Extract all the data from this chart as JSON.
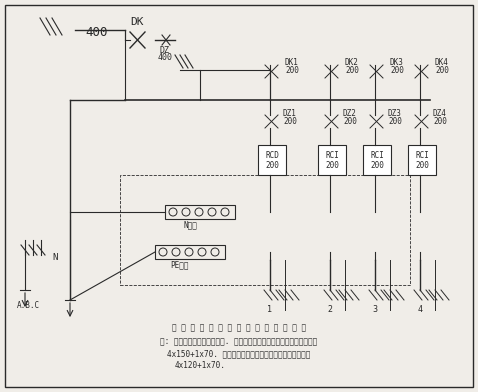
{
  "bg_color": "#f0ede8",
  "line_color": "#2a2a2a",
  "border_color": "#333333",
  "title_text": "总 配 电 箱 及 分 路 漏 电 保 护 器 系 统 图",
  "note_line1": "注: 上图为总配电箱前接线图. 由电源接入总配电箱的电缆为橡套软电缆",
  "note_line2": "4x150+1x70. 总配电箱连接各分配箱的电缆为橡套软电缆",
  "note_line3": "4x120+1x70.",
  "main_breaker_label": "DK",
  "main_breaker_rating": "400",
  "main_fuse_label": "DZ\n400",
  "branch_labels": [
    "DK1\n200",
    "DK2\n200",
    "DK3\n200",
    "DK4\n200"
  ],
  "branch_fuse_labels": [
    "DZ1\n200",
    "DZ2\n200",
    "DZ3\n200",
    "DZ4\n200"
  ],
  "rcd_labels": [
    "RCD\n200",
    "RCI\n200",
    "RCI\n200",
    "RCI\n200"
  ],
  "n_bus_label": "N母排",
  "pe_bus_label": "PE母排",
  "circuit_numbers": [
    "1",
    "2",
    "3",
    "4"
  ],
  "abc_label": "A.B.C",
  "n_label": "N"
}
